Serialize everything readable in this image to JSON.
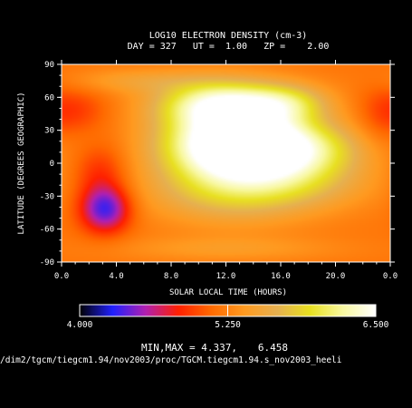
{
  "chart_data": {
    "type": "heatmap",
    "title": "LOG10 ELECTRON DENSITY (cm-3)",
    "subtitle": "DAY = 327   UT =  1.00   ZP =    2.00",
    "xlabel": "SOLAR LOCAL TIME (HOURS)",
    "ylabel": "LATITUDE (DEGREES GEOGRAPHIC)",
    "xlim": [
      0,
      24
    ],
    "ylim": [
      -90,
      90
    ],
    "x_ticks": [
      "0.0",
      "4.0",
      "8.0",
      "12.0",
      "16.0",
      "20.0",
      "0.0"
    ],
    "y_ticks": [
      "90",
      "60",
      "30",
      "0",
      "-30",
      "-60",
      "-90"
    ],
    "colorbar": {
      "min": 4.0,
      "max": 6.5,
      "labels": [
        "4.000",
        "5.250",
        "6.500"
      ],
      "colors": [
        "#000000",
        "#2020ff",
        "#b020b0",
        "#ff2000",
        "#ff6a00",
        "#ff9a20",
        "#e6b050",
        "#e8e020",
        "#f8f8a0",
        "#ffffff"
      ]
    },
    "field_features": [
      {
        "x": 12.5,
        "y": 25,
        "value": 6.45,
        "sx": 3.6,
        "sy": 26
      },
      {
        "x": 15.5,
        "y": 12,
        "value": 6.3,
        "sx": 4.2,
        "sy": 18
      },
      {
        "x": 11.5,
        "y": 55,
        "value": 6.0,
        "sx": 3.2,
        "sy": 14
      },
      {
        "x": 16.5,
        "y": 55,
        "value": 5.7,
        "sx": 2.2,
        "sy": 12
      },
      {
        "x": 12.5,
        "y": -25,
        "value": 5.75,
        "sx": 4.5,
        "sy": 22
      },
      {
        "x": 17.5,
        "y": -20,
        "value": 5.45,
        "sx": 4.0,
        "sy": 16
      },
      {
        "x": 3.2,
        "y": -42,
        "value": 4.34,
        "sx": 1.3,
        "sy": 15
      },
      {
        "x": 2.8,
        "y": -8,
        "value": 4.85,
        "sx": 1.4,
        "sy": 18
      },
      {
        "x": 1.2,
        "y": 48,
        "value": 4.95,
        "sx": 1.6,
        "sy": 14
      },
      {
        "x": 23.2,
        "y": 40,
        "value": 5.0,
        "sx": 1.3,
        "sy": 22
      },
      {
        "x": 5.5,
        "y": 75,
        "value": 5.45,
        "sx": 3.5,
        "sy": 8
      },
      {
        "x": 12.0,
        "y": -78,
        "value": 5.4,
        "sx": 6.0,
        "sy": 8
      }
    ],
    "minmax_label": "MIN,MAX =",
    "min_value": "4.337,",
    "max_value": "6.458",
    "file_path": "/dim2/tgcm/tiegcm1.94/nov2003/proc/TGCM.tiegcm1.94.s_nov2003_heeli"
  }
}
